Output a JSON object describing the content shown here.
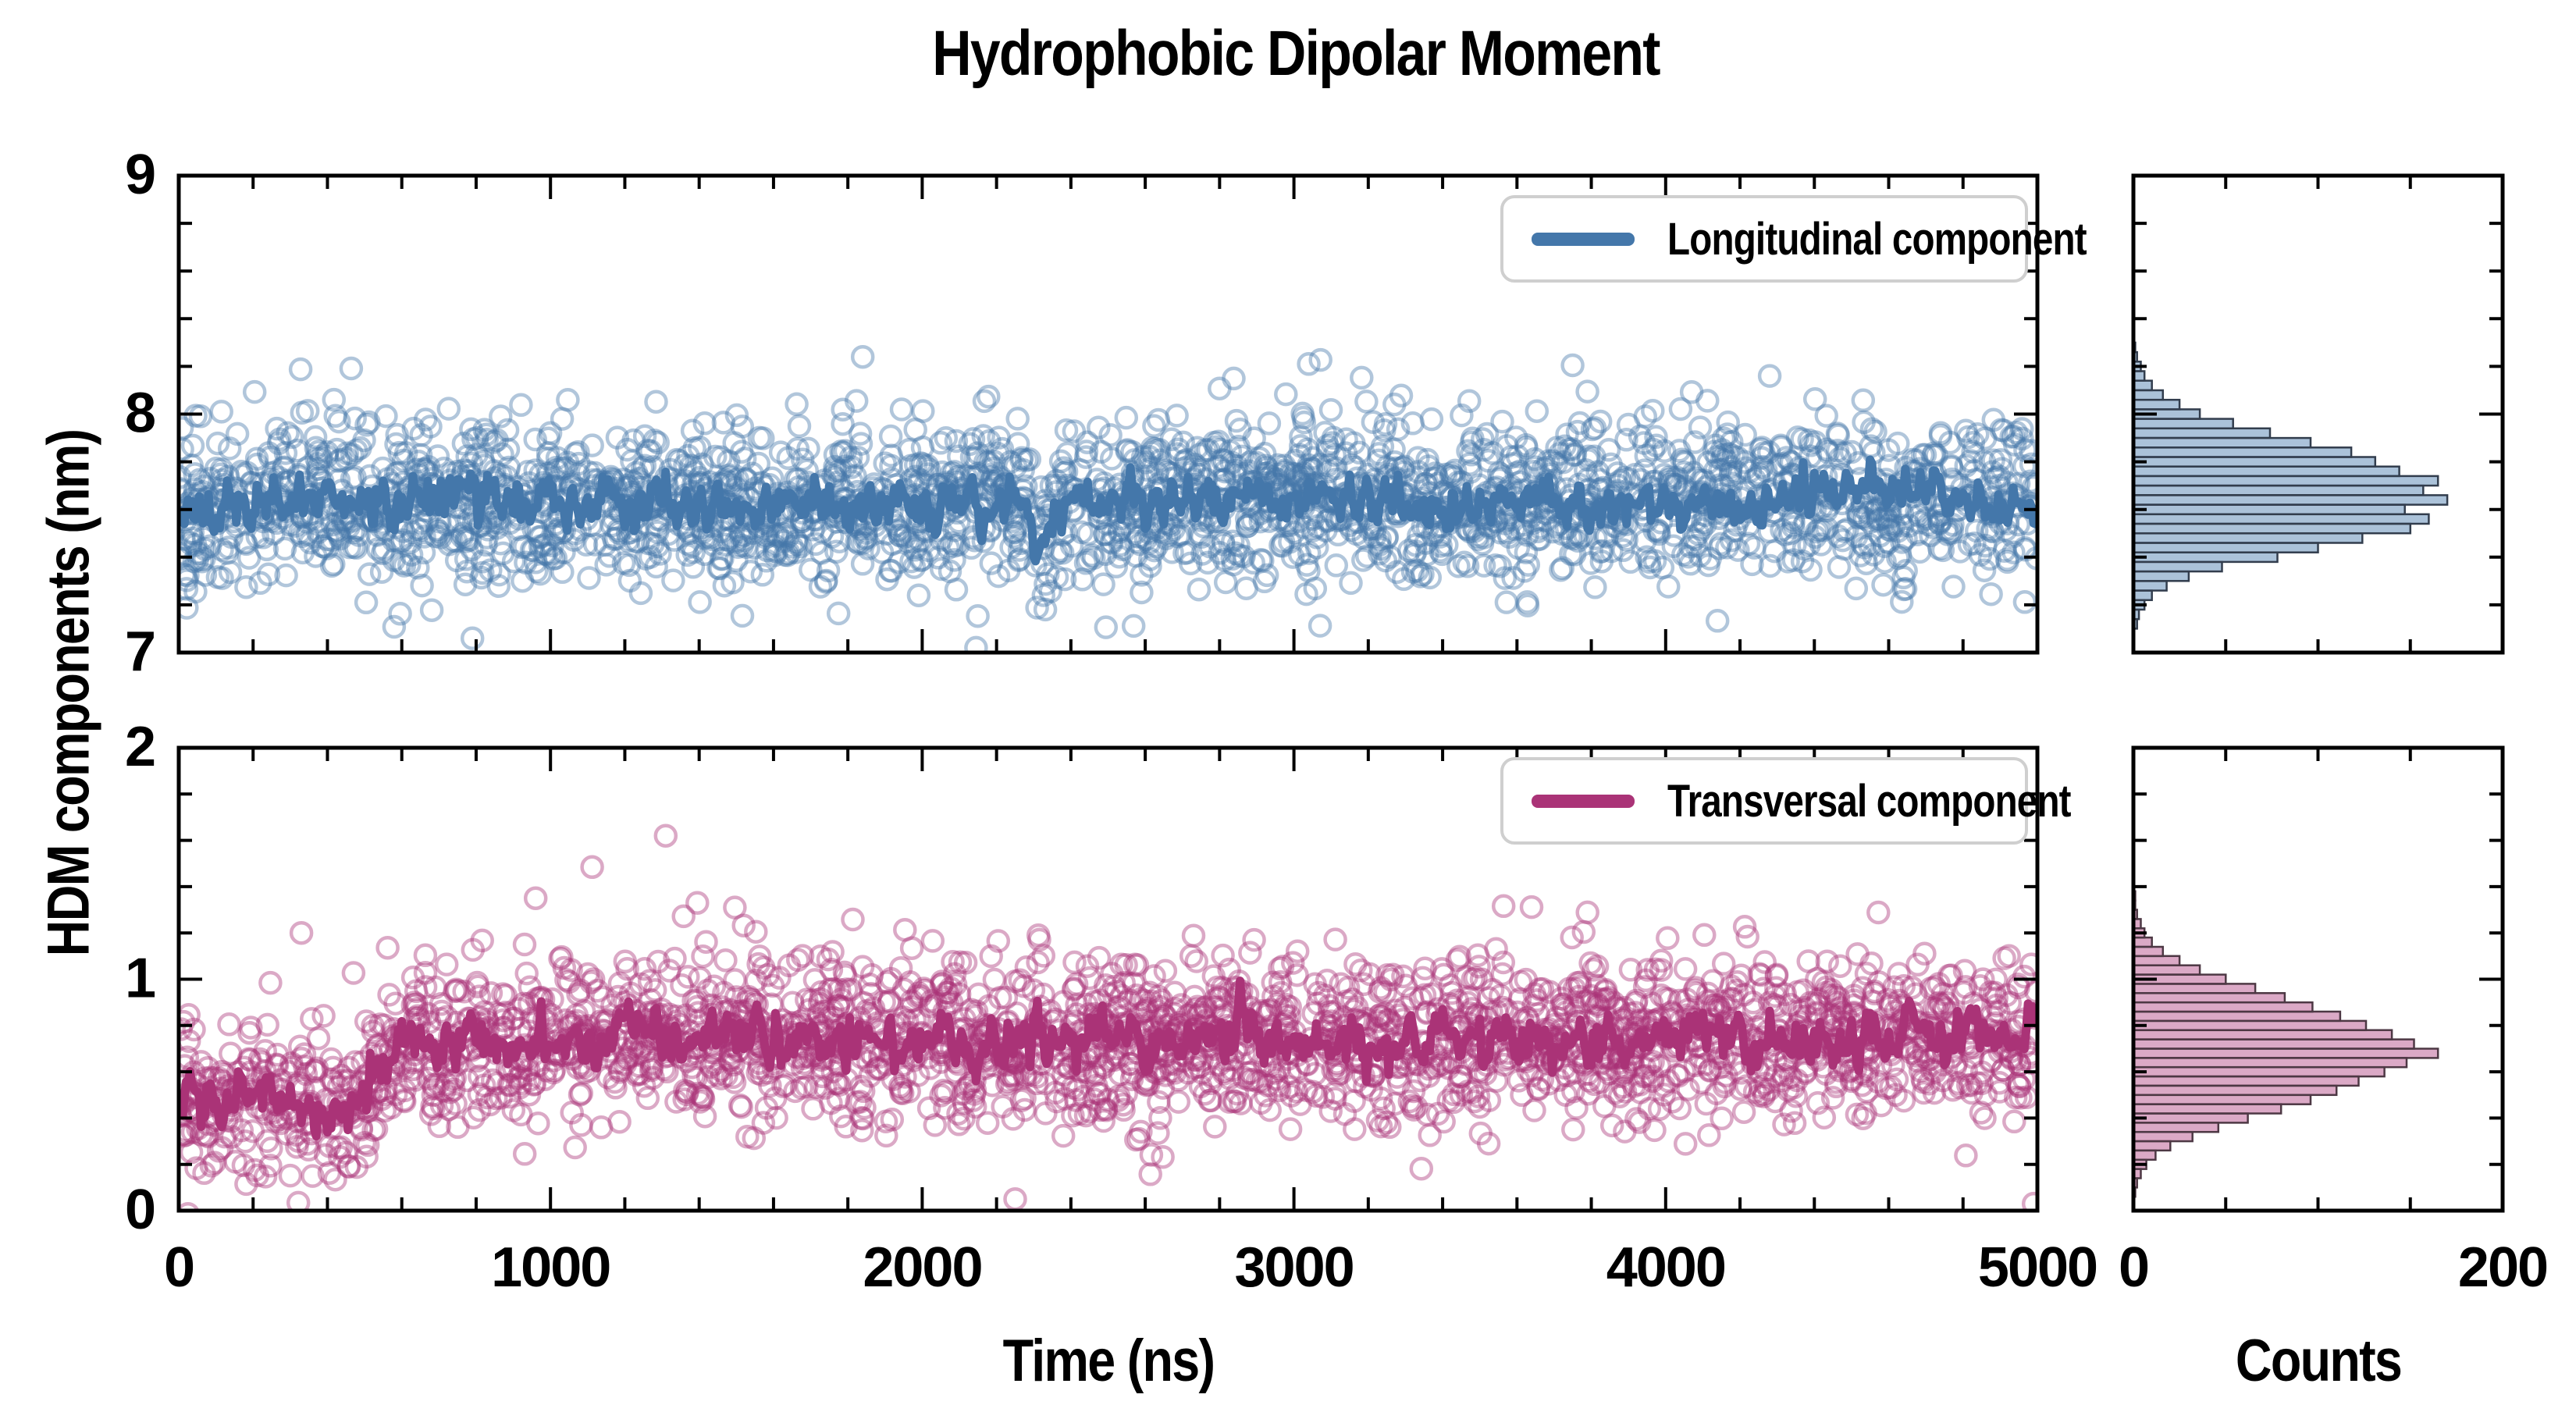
{
  "title": "Hydrophobic Dipolar Moment",
  "axes": {
    "ylabel": "HDM components (nm)",
    "time_xlabel": "Time (ns)",
    "counts_xlabel": "Counts",
    "time_lim": [
      0,
      5000
    ],
    "time_major_ticks": [
      0,
      1000,
      2000,
      3000,
      4000,
      5000
    ],
    "time_minor_step": 200,
    "counts_lim": [
      0,
      200
    ],
    "counts_labeled_ticks": [
      0,
      200
    ],
    "counts_minor_step": 50,
    "y_minor_step": 0.2,
    "grid": "off",
    "tick_direction": "in"
  },
  "chart_data": {
    "type": "scatter+line with marginal histograms",
    "panels": [
      {
        "label": "Longitudinal component",
        "ylim": [
          7,
          9
        ],
        "y_major_ticks": [
          7,
          8,
          9
        ],
        "xlim": [
          0,
          5000
        ],
        "line_color": "#4477AA",
        "scatter_color": "rgba(68,119,170,0.42)",
        "hist_fill": "rgba(68,119,170,0.45)",
        "hist_edge": "#323d4d",
        "mean_keypoints": [
          [
            0,
            7.6
          ],
          [
            300,
            7.63
          ],
          [
            800,
            7.64
          ],
          [
            1500,
            7.62
          ],
          [
            2280,
            7.63
          ],
          [
            2330,
            7.44
          ],
          [
            2390,
            7.63
          ],
          [
            3000,
            7.65
          ],
          [
            3800,
            7.62
          ],
          [
            4500,
            7.64
          ],
          [
            5000,
            7.61
          ]
        ],
        "scatter_sd": 0.165,
        "line_noise_sd": 0.045,
        "n_scatter": 2400,
        "outliers": [
          [
            1840,
            8.24
          ],
          [
            3040,
            8.21
          ],
          [
            4280,
            8.16
          ],
          [
            790,
            7.06
          ],
          [
            2145,
            7.02
          ]
        ],
        "histogram": {
          "orientation": "horizontal",
          "start": 7.1,
          "bin_width": 0.04,
          "counts": [
            2,
            3,
            6,
            10,
            18,
            30,
            48,
            78,
            100,
            124,
            150,
            160,
            147,
            170,
            157,
            165,
            144,
            131,
            118,
            96,
            74,
            54,
            36,
            25,
            16,
            10,
            6,
            4,
            2,
            1
          ],
          "peak_count": 170,
          "count_axis_max": 200
        },
        "seed": 7
      },
      {
        "label": "Transversal component",
        "ylim": [
          0,
          2
        ],
        "y_major_ticks": [
          0,
          1,
          2
        ],
        "xlim": [
          0,
          5000
        ],
        "line_color": "#AA3377",
        "scatter_color": "rgba(170,51,119,0.42)",
        "hist_fill": "rgba(170,51,119,0.42)",
        "hist_edge": "#4d3844",
        "mean_keypoints": [
          [
            0,
            0.47
          ],
          [
            120,
            0.5
          ],
          [
            260,
            0.47
          ],
          [
            400,
            0.44
          ],
          [
            490,
            0.5
          ],
          [
            560,
            0.65
          ],
          [
            640,
            0.75
          ],
          [
            900,
            0.72
          ],
          [
            1200,
            0.77
          ],
          [
            1600,
            0.74
          ],
          [
            2000,
            0.74
          ],
          [
            2400,
            0.72
          ],
          [
            2800,
            0.75
          ],
          [
            3200,
            0.72
          ],
          [
            3600,
            0.74
          ],
          [
            4000,
            0.76
          ],
          [
            4400,
            0.73
          ],
          [
            4700,
            0.76
          ],
          [
            5000,
            0.74
          ]
        ],
        "scatter_sd": 0.175,
        "line_noise_sd": 0.05,
        "n_scatter": 2400,
        "outliers": [
          [
            960,
            1.35
          ],
          [
            1310,
            1.62
          ],
          [
            1395,
            1.33
          ],
          [
            330,
            1.2
          ],
          [
            2250,
            0.05
          ],
          [
            4990,
            0.03
          ]
        ],
        "histogram": {
          "orientation": "horizontal",
          "start": 0.06,
          "bin_width": 0.04,
          "counts": [
            1,
            2,
            4,
            7,
            12,
            20,
            32,
            46,
            62,
            80,
            96,
            110,
            122,
            136,
            148,
            165,
            152,
            140,
            126,
            112,
            97,
            82,
            66,
            50,
            36,
            25,
            16,
            10,
            6,
            4,
            2,
            1,
            1
          ],
          "peak_count": 165,
          "count_axis_max": 200
        },
        "seed": 21
      }
    ]
  },
  "colors": {
    "blue": "#4477AA",
    "magenta": "#AA3377",
    "spine": "#000000",
    "legend_border": "#cfcfcf",
    "background": "#ffffff"
  }
}
